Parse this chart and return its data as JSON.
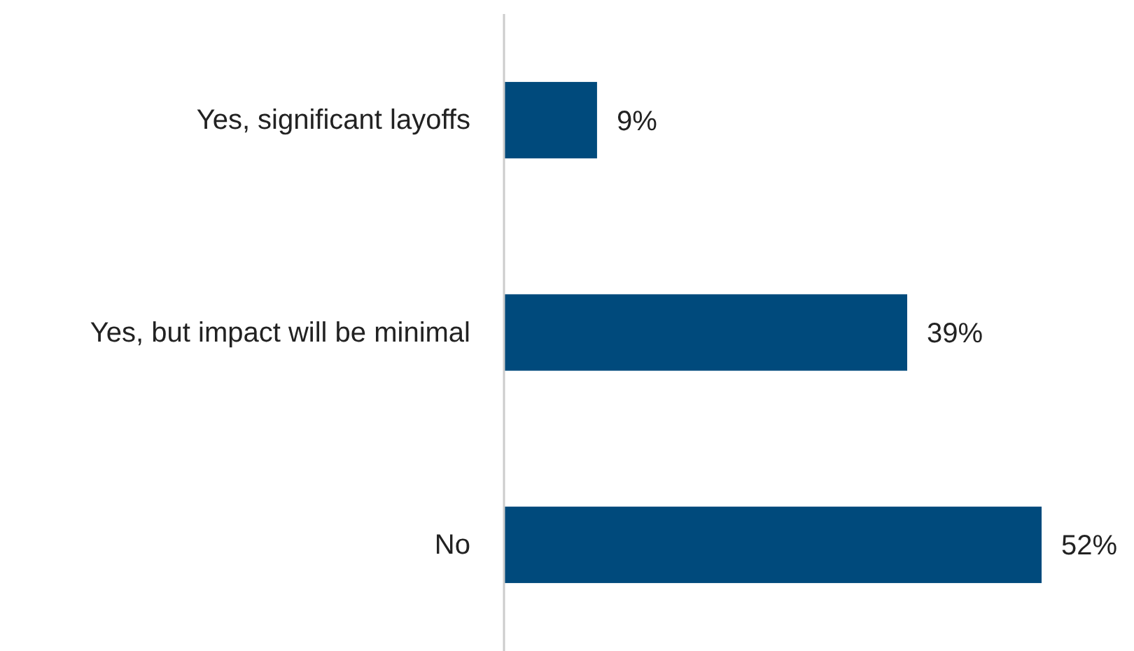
{
  "chart_data": {
    "type": "bar",
    "orientation": "horizontal",
    "categories": [
      "Yes, significant layoffs",
      "Yes, but impact will be minimal",
      "No"
    ],
    "values": [
      9,
      39,
      52
    ],
    "color": "#004a7c",
    "value_labels": [
      "9%",
      "39%",
      "52%"
    ]
  }
}
